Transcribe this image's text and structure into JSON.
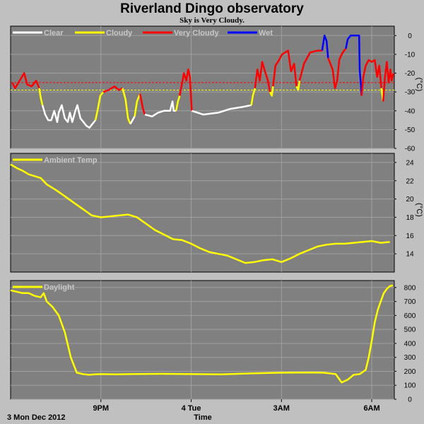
{
  "title": "Riverland Dingo observatory",
  "subtitle": "Sky is Very Cloudy.",
  "footer": {
    "date": "3 Mon Dec 2012",
    "xlabel": "Time"
  },
  "x_ticks": [
    {
      "label": "9PM",
      "t": 3
    },
    {
      "label": "4 Tue",
      "t": 6
    },
    {
      "label": "3AM",
      "t": 9
    },
    {
      "label": "6AM",
      "t": 12
    }
  ],
  "colors": {
    "plot_bg": "#808080",
    "grid": "#a0a0a0",
    "clear": "#ffffff",
    "cloudy": "#ffff00",
    "very_cloudy": "#ff0000",
    "wet": "#0000ff",
    "temp": "#ffff00",
    "daylight": "#ffff00",
    "threshold_cloudy": "#ffff00",
    "threshold_very": "#ff0000"
  },
  "chart_data": [
    {
      "type": "line",
      "name": "sky",
      "x_unit": "hours from 18:00",
      "xlim": [
        0,
        12.75
      ],
      "ylim": [
        -60,
        5
      ],
      "y_ticks": [
        0,
        -10,
        -20,
        -30,
        -40,
        -50,
        -60
      ],
      "ylabel": "(°C)",
      "legend": [
        "Clear",
        "Cloudy",
        "Very Cloudy",
        "Wet"
      ],
      "thresholds": [
        -25,
        -29
      ],
      "series": [
        {
          "name": "Very Cloudy",
          "color": "very_cloudy",
          "points": [
            [
              0.05,
              -25
            ],
            [
              0.15,
              -28
            ],
            [
              0.3,
              -24
            ],
            [
              0.45,
              -20
            ],
            [
              0.55,
              -26
            ],
            [
              0.7,
              -27
            ],
            [
              0.85,
              -24
            ],
            [
              0.95,
              -28
            ]
          ]
        },
        {
          "name": "Cloudy",
          "color": "cloudy",
          "points": [
            [
              0.95,
              -28
            ],
            [
              1.0,
              -33
            ],
            [
              1.06,
              -37
            ]
          ]
        },
        {
          "name": "Clear",
          "color": "clear",
          "points": [
            [
              1.06,
              -37
            ],
            [
              1.15,
              -42
            ],
            [
              1.25,
              -45
            ],
            [
              1.35,
              -45
            ],
            [
              1.45,
              -40
            ],
            [
              1.55,
              -46
            ],
            [
              1.6,
              -41
            ],
            [
              1.7,
              -37
            ],
            [
              1.8,
              -44
            ],
            [
              1.9,
              -46
            ],
            [
              1.97,
              -41
            ],
            [
              2.05,
              -46
            ],
            [
              2.15,
              -40
            ],
            [
              2.22,
              -37
            ],
            [
              2.32,
              -44
            ],
            [
              2.42,
              -46
            ],
            [
              2.52,
              -48
            ],
            [
              2.62,
              -49
            ],
            [
              2.72,
              -47
            ],
            [
              2.82,
              -45
            ]
          ]
        },
        {
          "name": "Cloudy",
          "color": "cloudy",
          "points": [
            [
              2.82,
              -45
            ],
            [
              2.9,
              -39
            ],
            [
              2.98,
              -32
            ],
            [
              3.08,
              -30
            ]
          ]
        },
        {
          "name": "Very Cloudy",
          "color": "very_cloudy",
          "points": [
            [
              3.08,
              -30
            ],
            [
              3.25,
              -29
            ],
            [
              3.45,
              -27
            ],
            [
              3.6,
              -29
            ],
            [
              3.72,
              -28
            ]
          ]
        },
        {
          "name": "Cloudy",
          "color": "cloudy",
          "points": [
            [
              3.72,
              -28
            ],
            [
              3.82,
              -34
            ],
            [
              3.9,
              -44
            ],
            [
              3.98,
              -47
            ]
          ]
        },
        {
          "name": "Clear",
          "color": "clear",
          "points": [
            [
              3.98,
              -47
            ],
            [
              4.05,
              -45
            ],
            [
              4.12,
              -43
            ]
          ]
        },
        {
          "name": "Cloudy",
          "color": "cloudy",
          "points": [
            [
              4.12,
              -43
            ],
            [
              4.2,
              -35
            ],
            [
              4.3,
              -31
            ]
          ]
        },
        {
          "name": "Very Cloudy",
          "color": "very_cloudy",
          "points": [
            [
              4.3,
              -31
            ],
            [
              4.4,
              -39
            ],
            [
              4.46,
              -42
            ]
          ]
        },
        {
          "name": "Clear",
          "color": "clear",
          "points": [
            [
              4.46,
              -42
            ],
            [
              4.7,
              -43
            ],
            [
              4.9,
              -41
            ],
            [
              5.1,
              -40
            ],
            [
              5.3,
              -40
            ],
            [
              5.38,
              -35
            ],
            [
              5.42,
              -40
            ],
            [
              5.5,
              -40
            ]
          ]
        },
        {
          "name": "Cloudy",
          "color": "cloudy",
          "points": [
            [
              5.5,
              -40
            ],
            [
              5.56,
              -35
            ],
            [
              5.62,
              -32
            ]
          ]
        },
        {
          "name": "Very Cloudy",
          "color": "very_cloudy",
          "points": [
            [
              5.62,
              -32
            ],
            [
              5.7,
              -25
            ],
            [
              5.76,
              -20
            ],
            [
              5.84,
              -24
            ],
            [
              5.9,
              -18
            ],
            [
              5.96,
              -22
            ],
            [
              6.02,
              -40
            ]
          ]
        },
        {
          "name": "Clear",
          "color": "clear",
          "points": [
            [
              6.02,
              -40
            ],
            [
              6.4,
              -42
            ],
            [
              6.9,
              -41
            ],
            [
              7.3,
              -39
            ],
            [
              7.7,
              -38
            ],
            [
              8.0,
              -37
            ]
          ]
        },
        {
          "name": "Cloudy",
          "color": "cloudy",
          "points": [
            [
              8.0,
              -37
            ],
            [
              8.05,
              -32
            ],
            [
              8.12,
              -28
            ]
          ]
        },
        {
          "name": "Very Cloudy",
          "color": "very_cloudy",
          "points": [
            [
              8.12,
              -28
            ],
            [
              8.2,
              -18
            ],
            [
              8.28,
              -24
            ],
            [
              8.36,
              -14
            ],
            [
              8.45,
              -19
            ],
            [
              8.55,
              -24
            ],
            [
              8.62,
              -30
            ]
          ]
        },
        {
          "name": "Cloudy",
          "color": "cloudy",
          "points": [
            [
              8.62,
              -30
            ],
            [
              8.68,
              -32
            ],
            [
              8.72,
              -27
            ]
          ]
        },
        {
          "name": "Very Cloudy",
          "color": "very_cloudy",
          "points": [
            [
              8.72,
              -27
            ],
            [
              8.8,
              -16
            ],
            [
              8.92,
              -13
            ],
            [
              9.02,
              -10
            ],
            [
              9.12,
              -9
            ],
            [
              9.22,
              -8
            ],
            [
              9.32,
              -19
            ],
            [
              9.42,
              -15
            ],
            [
              9.5,
              -27
            ]
          ]
        },
        {
          "name": "Cloudy",
          "color": "cloudy",
          "points": [
            [
              9.5,
              -27
            ],
            [
              9.56,
              -29
            ],
            [
              9.6,
              -24
            ]
          ]
        },
        {
          "name": "Very Cloudy",
          "color": "very_cloudy",
          "points": [
            [
              9.6,
              -24
            ],
            [
              9.75,
              -15
            ],
            [
              9.95,
              -9
            ],
            [
              10.2,
              -8
            ],
            [
              10.35,
              -8
            ]
          ]
        },
        {
          "name": "Wet",
          "color": "wet",
          "points": [
            [
              10.35,
              -8
            ],
            [
              10.43,
              0
            ],
            [
              10.5,
              -3
            ],
            [
              10.55,
              -12
            ]
          ]
        },
        {
          "name": "Very Cloudy",
          "color": "very_cloudy",
          "points": [
            [
              10.55,
              -12
            ],
            [
              10.7,
              -18
            ],
            [
              10.78,
              -28
            ],
            [
              10.85,
              -24
            ],
            [
              10.92,
              -13
            ],
            [
              11.0,
              -10
            ],
            [
              11.08,
              -8
            ],
            [
              11.14,
              -7
            ]
          ]
        },
        {
          "name": "Wet",
          "color": "wet",
          "points": [
            [
              11.14,
              -7
            ],
            [
              11.2,
              -2
            ],
            [
              11.3,
              0
            ],
            [
              11.45,
              0
            ],
            [
              11.58,
              0
            ],
            [
              11.6,
              -18
            ],
            [
              11.64,
              -26
            ],
            [
              11.66,
              -32
            ]
          ]
        },
        {
          "name": "Very Cloudy",
          "color": "very_cloudy",
          "points": [
            [
              11.66,
              -32
            ],
            [
              11.72,
              -22
            ],
            [
              11.8,
              -16
            ],
            [
              11.9,
              -13
            ],
            [
              12.0,
              -14
            ],
            [
              12.1,
              -13
            ],
            [
              12.18,
              -22
            ],
            [
              12.25,
              -16
            ],
            [
              12.32,
              -28
            ]
          ]
        },
        {
          "name": "Cloudy",
          "color": "cloudy",
          "points": [
            [
              12.32,
              -28
            ],
            [
              12.36,
              -33
            ],
            [
              12.38,
              -35
            ]
          ]
        },
        {
          "name": "Very Cloudy",
          "color": "very_cloudy",
          "points": [
            [
              12.38,
              -35
            ],
            [
              12.44,
              -22
            ],
            [
              12.5,
              -14
            ],
            [
              12.56,
              -25
            ],
            [
              12.62,
              -18
            ],
            [
              12.66,
              -24
            ],
            [
              12.72,
              -20
            ]
          ]
        }
      ]
    },
    {
      "type": "line",
      "name": "Ambient Temp",
      "xlim": [
        0,
        12.75
      ],
      "ylim": [
        12,
        25
      ],
      "y_ticks": [
        14,
        16,
        18,
        20,
        22,
        24
      ],
      "ylabel": "(°C)",
      "legend": [
        "Ambient Temp"
      ],
      "x": [
        0,
        0.2,
        0.4,
        0.6,
        0.8,
        1.0,
        1.2,
        1.5,
        1.8,
        2.1,
        2.4,
        2.7,
        3.0,
        3.3,
        3.6,
        3.9,
        4.2,
        4.5,
        4.8,
        5.1,
        5.4,
        5.7,
        6.0,
        6.3,
        6.6,
        6.9,
        7.2,
        7.5,
        7.8,
        8.1,
        8.4,
        8.7,
        9.0,
        9.3,
        9.6,
        9.9,
        10.2,
        10.5,
        10.8,
        11.1,
        11.4,
        11.7,
        12.0,
        12.3,
        12.6
      ],
      "y": [
        23.8,
        23.4,
        23.1,
        22.7,
        22.5,
        22.3,
        21.6,
        21.0,
        20.3,
        19.6,
        18.9,
        18.2,
        18.0,
        18.1,
        18.2,
        18.3,
        18.0,
        17.3,
        16.6,
        16.1,
        15.6,
        15.5,
        15.1,
        14.6,
        14.2,
        14.0,
        13.8,
        13.4,
        13.0,
        13.1,
        13.3,
        13.4,
        13.1,
        13.5,
        14.0,
        14.4,
        14.8,
        15.0,
        15.1,
        15.1,
        15.2,
        15.3,
        15.4,
        15.2,
        15.3
      ]
    },
    {
      "type": "line",
      "name": "Daylight",
      "xlim": [
        0,
        12.75
      ],
      "ylim": [
        0,
        850
      ],
      "y_ticks": [
        0,
        100,
        200,
        300,
        400,
        500,
        600,
        700,
        800
      ],
      "legend": [
        "Daylight"
      ],
      "x": [
        0,
        0.2,
        0.4,
        0.6,
        0.8,
        1.0,
        1.1,
        1.2,
        1.4,
        1.6,
        1.8,
        2.0,
        2.2,
        2.4,
        2.6,
        2.8,
        3.0,
        3.5,
        4.0,
        5.0,
        6.0,
        7.0,
        8.0,
        9.0,
        10.0,
        10.4,
        10.6,
        10.8,
        11.0,
        11.2,
        11.4,
        11.6,
        11.8,
        11.9,
        12.0,
        12.1,
        12.2,
        12.3,
        12.4,
        12.5,
        12.6,
        12.7
      ],
      "y": [
        780,
        770,
        760,
        760,
        740,
        730,
        760,
        700,
        660,
        600,
        480,
        300,
        190,
        180,
        175,
        178,
        180,
        178,
        180,
        182,
        180,
        178,
        185,
        190,
        192,
        190,
        185,
        180,
        120,
        140,
        175,
        180,
        210,
        300,
        420,
        550,
        640,
        700,
        760,
        790,
        810,
        815
      ]
    }
  ]
}
